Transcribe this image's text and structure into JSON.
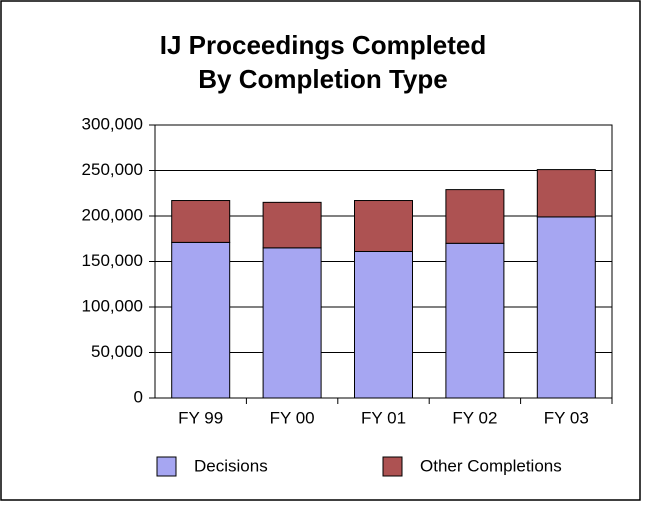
{
  "chart_data": {
    "type": "stacked_bar",
    "title": [
      "IJ Proceedings Completed",
      "By Completion Type"
    ],
    "categories": [
      "FY 99",
      "FY 00",
      "FY 01",
      "FY 02",
      "FY 03"
    ],
    "series": [
      {
        "name": "Decisions",
        "color": "#a6a6f2",
        "values": [
          171000,
          165000,
          161000,
          170000,
          199000
        ]
      },
      {
        "name": "Other Completions",
        "color": "#ad5252",
        "values": [
          46000,
          50000,
          56000,
          59000,
          52000
        ]
      }
    ],
    "ylim": [
      0,
      300000
    ],
    "yticks": [
      0,
      {
        "value": 50000,
        "label": "50,000"
      },
      {
        "value": 100000,
        "label": "100,000"
      },
      {
        "value": 150000,
        "label": "150,000"
      },
      {
        "value": 200000,
        "label": "200,000"
      },
      {
        "value": 250000,
        "label": "250,000"
      },
      {
        "value": 300000,
        "label": "300,000"
      }
    ],
    "grid": true,
    "legend": "bottom"
  }
}
